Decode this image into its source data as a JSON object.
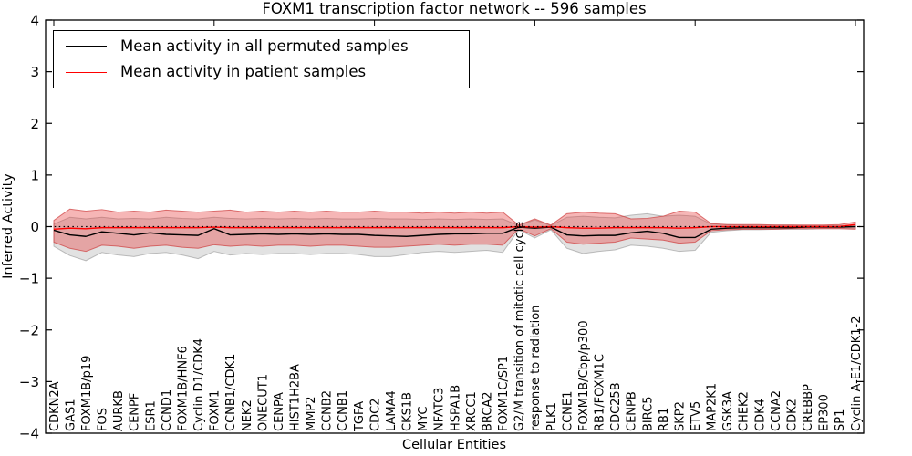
{
  "chart_data": {
    "type": "line",
    "title": "FOXM1 transcription factor network -- 596 samples",
    "xlabel": "Cellular Entities",
    "ylabel": "Inferred Activity",
    "ylim": [
      -4,
      4
    ],
    "yticks": [
      -4,
      -3,
      -2,
      -1,
      0,
      1,
      2,
      3,
      4
    ],
    "grid": false,
    "legend_position": "upper left",
    "zero_line": {
      "y": 0,
      "style": "dotted",
      "color": "#000000"
    },
    "categories": [
      "CDKN2A",
      "GAS1",
      "FOXM1B/p19",
      "FOS",
      "AURKB",
      "CENPF",
      "ESR1",
      "CCND1",
      "FOXM1B/HNF6",
      "Cyclin D1/CDK4",
      "FOXM1",
      "CCNB1/CDK1",
      "NEK2",
      "ONECUT1",
      "CENPA",
      "HIST1H2BA",
      "MMP2",
      "CCNB2",
      "CCNB1",
      "TGFA",
      "CDC2",
      "LAMA4",
      "CKS1B",
      "MYC",
      "NFATC3",
      "HSPA1B",
      "XRCC1",
      "BRCA2",
      "FOXM1C/SP1",
      "G2/M transition of mitotic cell cycle",
      "response to radiation",
      "PLK1",
      "CCNE1",
      "FOXM1B/Cbp/p300",
      "RB1/FOXM1C",
      "CDC25B",
      "CENPB",
      "BIRC5",
      "RB1",
      "SKP2",
      "ETV5",
      "MAP2K1",
      "GSK3A",
      "CHEK2",
      "CDK4",
      "CCNA2",
      "CDK2",
      "CREBBP",
      "EP300",
      "SP1",
      "Cyclin A-E1/CDK1-2"
    ],
    "series": [
      {
        "name": "Mean activity in all permuted samples",
        "color": "#000000",
        "values": [
          -0.07,
          -0.16,
          -0.19,
          -0.1,
          -0.13,
          -0.16,
          -0.12,
          -0.15,
          -0.16,
          -0.17,
          -0.04,
          -0.16,
          -0.15,
          -0.14,
          -0.15,
          -0.14,
          -0.15,
          -0.14,
          -0.15,
          -0.15,
          -0.17,
          -0.18,
          -0.19,
          -0.17,
          -0.15,
          -0.14,
          -0.14,
          -0.13,
          -0.13,
          -0.01,
          -0.03,
          -0.01,
          -0.16,
          -0.18,
          -0.17,
          -0.17,
          -0.12,
          -0.09,
          -0.13,
          -0.21,
          -0.21,
          -0.05,
          -0.03,
          -0.02,
          -0.02,
          -0.02,
          -0.02,
          -0.01,
          -0.01,
          -0.01,
          0.0
        ]
      },
      {
        "name": "Mean activity in patient samples",
        "color": "#ff0000",
        "values": [
          -0.05,
          -0.03,
          -0.04,
          -0.02,
          -0.02,
          -0.02,
          -0.02,
          -0.02,
          -0.02,
          -0.02,
          -0.01,
          -0.02,
          -0.02,
          -0.02,
          -0.02,
          -0.02,
          -0.02,
          -0.02,
          -0.02,
          -0.02,
          -0.02,
          -0.02,
          -0.02,
          -0.02,
          -0.02,
          -0.02,
          -0.02,
          -0.02,
          -0.02,
          0.0,
          -0.01,
          0.0,
          -0.02,
          -0.03,
          -0.03,
          -0.02,
          -0.02,
          -0.02,
          -0.02,
          -0.03,
          -0.02,
          0.0,
          0.0,
          0.0,
          0.0,
          0.0,
          0.0,
          0.0,
          0.0,
          0.0,
          0.04
        ]
      }
    ],
    "bands": [
      {
        "name": "Std band of permuted samples",
        "fill": "rgba(140,140,140,0.25)",
        "edge": "rgba(120,120,120,0.45)",
        "upper": [
          0.05,
          0.18,
          0.15,
          0.18,
          0.15,
          0.16,
          0.15,
          0.18,
          0.16,
          0.15,
          0.18,
          0.16,
          0.15,
          0.16,
          0.15,
          0.16,
          0.15,
          0.16,
          0.15,
          0.15,
          0.16,
          0.15,
          0.15,
          0.14,
          0.15,
          0.14,
          0.15,
          0.14,
          0.15,
          0.02,
          0.13,
          0.02,
          0.18,
          0.2,
          0.18,
          0.17,
          0.22,
          0.25,
          0.2,
          0.22,
          0.2,
          0.05,
          0.04,
          0.03,
          0.03,
          0.03,
          0.03,
          0.02,
          0.02,
          0.02,
          0.03
        ],
        "lower": [
          -0.38,
          -0.56,
          -0.66,
          -0.5,
          -0.55,
          -0.58,
          -0.52,
          -0.5,
          -0.55,
          -0.62,
          -0.48,
          -0.55,
          -0.52,
          -0.54,
          -0.52,
          -0.52,
          -0.54,
          -0.52,
          -0.52,
          -0.54,
          -0.58,
          -0.58,
          -0.54,
          -0.5,
          -0.48,
          -0.5,
          -0.48,
          -0.46,
          -0.5,
          -0.06,
          -0.22,
          -0.06,
          -0.42,
          -0.52,
          -0.48,
          -0.45,
          -0.36,
          -0.38,
          -0.42,
          -0.48,
          -0.46,
          -0.11,
          -0.08,
          -0.06,
          -0.06,
          -0.05,
          -0.05,
          -0.05,
          -0.04,
          -0.04,
          -0.04
        ]
      },
      {
        "name": "Std band of patient samples",
        "fill": "rgba(232,62,62,0.38)",
        "edge": "rgba(205,60,60,0.7)",
        "upper": [
          0.12,
          0.34,
          0.3,
          0.33,
          0.28,
          0.3,
          0.28,
          0.32,
          0.3,
          0.28,
          0.3,
          0.32,
          0.28,
          0.3,
          0.28,
          0.3,
          0.28,
          0.3,
          0.28,
          0.28,
          0.3,
          0.28,
          0.28,
          0.26,
          0.28,
          0.26,
          0.28,
          0.26,
          0.28,
          0.03,
          0.15,
          0.03,
          0.25,
          0.28,
          0.26,
          0.25,
          0.15,
          0.16,
          0.2,
          0.3,
          0.28,
          0.06,
          0.04,
          0.04,
          0.04,
          0.03,
          0.03,
          0.03,
          0.03,
          0.04,
          0.09
        ],
        "lower": [
          -0.3,
          -0.42,
          -0.48,
          -0.36,
          -0.38,
          -0.42,
          -0.38,
          -0.36,
          -0.4,
          -0.42,
          -0.35,
          -0.38,
          -0.36,
          -0.38,
          -0.36,
          -0.36,
          -0.38,
          -0.36,
          -0.36,
          -0.38,
          -0.4,
          -0.4,
          -0.38,
          -0.36,
          -0.34,
          -0.36,
          -0.34,
          -0.34,
          -0.36,
          -0.04,
          -0.18,
          -0.04,
          -0.3,
          -0.34,
          -0.32,
          -0.3,
          -0.22,
          -0.24,
          -0.26,
          -0.32,
          -0.3,
          -0.08,
          -0.06,
          -0.05,
          -0.05,
          -0.05,
          -0.04,
          -0.04,
          -0.04,
          -0.04,
          -0.05
        ]
      }
    ]
  }
}
